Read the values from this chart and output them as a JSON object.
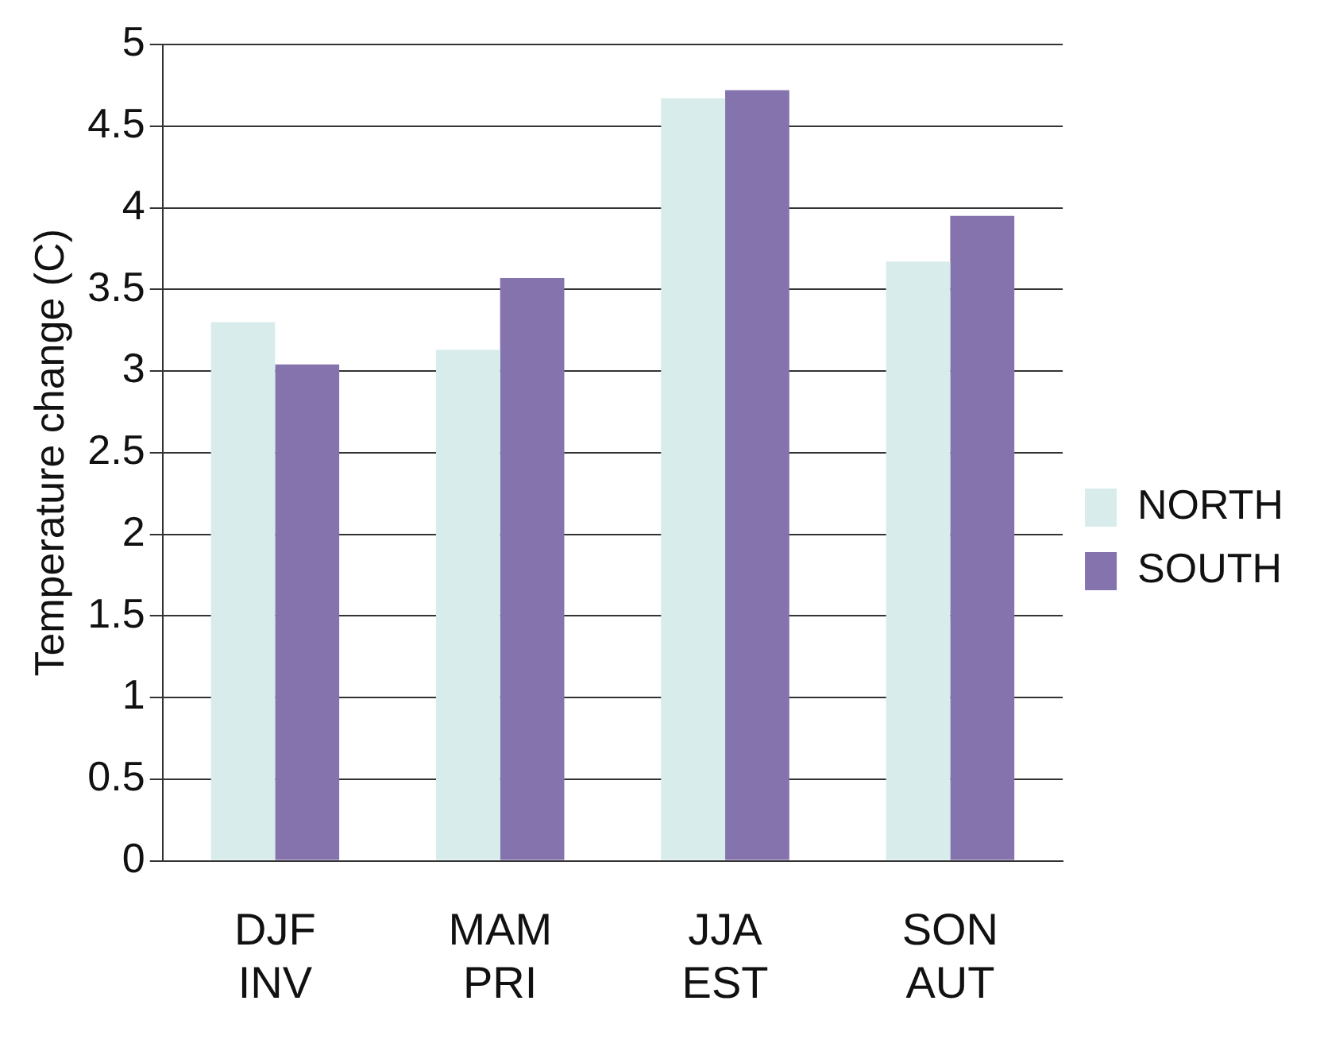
{
  "chart_data": {
    "type": "bar",
    "ylabel": "Temperature change (C)",
    "categories": [
      "DJF\nINV",
      "MAM\nPRI",
      "JJA\nEST",
      "SON\nAUT"
    ],
    "series": [
      {
        "name": "NORTH",
        "color": "#d8ecec",
        "values": [
          3.3,
          3.13,
          4.67,
          3.67
        ]
      },
      {
        "name": "SOUTH",
        "color": "#8573ad",
        "values": [
          3.04,
          3.57,
          4.72,
          3.95
        ]
      }
    ],
    "ylim": [
      0,
      5
    ],
    "yticks": [
      0,
      0.5,
      1,
      1.5,
      2,
      2.5,
      3,
      3.5,
      4,
      4.5,
      5
    ],
    "grid": "y",
    "legend": "right"
  }
}
